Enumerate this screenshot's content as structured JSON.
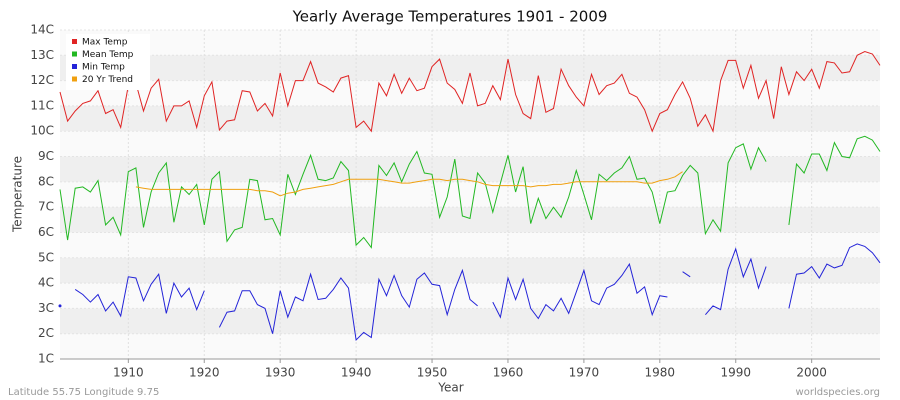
{
  "chart_data": {
    "type": "line",
    "title": "Yearly Average Temperatures 1901 - 2009",
    "x_label": "Year",
    "y_label": "Temperature",
    "footer_left": "Latitude 55.75 Longitude 9.75",
    "footer_right": "worldspecies.org",
    "grid": true,
    "legend_position": "top-left",
    "xlim": [
      1901,
      2009
    ],
    "xticks": [
      1910,
      1920,
      1930,
      1940,
      1950,
      1960,
      1970,
      1980,
      1990,
      2000
    ],
    "ylim": [
      1,
      14
    ],
    "yticks": [
      {
        "value": 1,
        "label": "1C"
      },
      {
        "value": 2,
        "label": "2C"
      },
      {
        "value": 3,
        "label": "3C"
      },
      {
        "value": 4,
        "label": "4C"
      },
      {
        "value": 5,
        "label": "5C"
      },
      {
        "value": 6,
        "label": "6C"
      },
      {
        "value": 7,
        "label": "7C"
      },
      {
        "value": 8,
        "label": "8C"
      },
      {
        "value": 9,
        "label": "9C"
      },
      {
        "value": 10,
        "label": "10C"
      },
      {
        "value": 11,
        "label": "11C"
      },
      {
        "value": 12,
        "label": "12C"
      },
      {
        "value": 13,
        "label": "13C"
      },
      {
        "value": 14,
        "label": "14C"
      }
    ],
    "x": [
      1901,
      1902,
      1903,
      1904,
      1905,
      1906,
      1907,
      1908,
      1909,
      1910,
      1911,
      1912,
      1913,
      1914,
      1915,
      1916,
      1917,
      1918,
      1919,
      1920,
      1921,
      1922,
      1923,
      1924,
      1925,
      1926,
      1927,
      1928,
      1929,
      1930,
      1931,
      1932,
      1933,
      1934,
      1935,
      1936,
      1937,
      1938,
      1939,
      1940,
      1941,
      1942,
      1943,
      1944,
      1945,
      1946,
      1947,
      1948,
      1949,
      1950,
      1951,
      1952,
      1953,
      1954,
      1955,
      1956,
      1957,
      1958,
      1959,
      1960,
      1961,
      1962,
      1963,
      1964,
      1965,
      1966,
      1967,
      1968,
      1969,
      1970,
      1971,
      1972,
      1973,
      1974,
      1975,
      1976,
      1977,
      1978,
      1979,
      1980,
      1981,
      1982,
      1983,
      1984,
      1985,
      1986,
      1987,
      1988,
      1989,
      1990,
      1991,
      1992,
      1993,
      1994,
      1995,
      1996,
      1997,
      1998,
      1999,
      2000,
      2001,
      2002,
      2003,
      2004,
      2005,
      2006,
      2007,
      2008,
      2009
    ],
    "series": [
      {
        "name": "Max Temp",
        "color": "#e02424",
        "values": [
          11.55,
          10.4,
          10.8,
          11.1,
          11.2,
          11.6,
          10.7,
          10.85,
          10.15,
          11.8,
          11.9,
          10.8,
          11.7,
          12.05,
          10.4,
          11.0,
          11.0,
          11.2,
          10.15,
          11.4,
          11.95,
          10.05,
          10.4,
          10.45,
          11.6,
          11.55,
          10.8,
          11.1,
          10.6,
          12.3,
          11.0,
          12.0,
          12.0,
          12.75,
          11.9,
          11.75,
          11.55,
          12.1,
          12.2,
          10.15,
          10.4,
          10.0,
          11.9,
          11.4,
          12.25,
          11.5,
          12.1,
          11.6,
          11.7,
          12.55,
          12.85,
          11.9,
          11.65,
          11.1,
          12.3,
          11.0,
          11.1,
          11.8,
          11.25,
          12.85,
          11.45,
          10.7,
          10.5,
          12.2,
          10.75,
          10.9,
          12.45,
          11.8,
          11.35,
          11.0,
          12.25,
          11.45,
          11.8,
          11.9,
          12.25,
          11.5,
          11.35,
          10.85,
          10.0,
          10.7,
          10.85,
          11.45,
          11.95,
          11.3,
          10.2,
          10.65,
          10.0,
          12.0,
          12.8,
          12.8,
          11.7,
          12.6,
          11.3,
          12.0,
          10.5,
          12.55,
          11.45,
          12.35,
          12.0,
          12.45,
          11.7,
          12.75,
          12.7,
          12.3,
          12.35,
          13.0,
          13.15,
          13.05,
          12.6
        ]
      },
      {
        "name": "Mean Temp",
        "color": "#22b822",
        "values": [
          7.7,
          5.7,
          7.75,
          7.8,
          7.6,
          8.05,
          6.3,
          6.6,
          5.9,
          8.4,
          8.55,
          6.2,
          7.6,
          8.35,
          8.75,
          6.4,
          7.8,
          7.5,
          7.9,
          6.3,
          8.1,
          8.4,
          5.65,
          6.1,
          6.2,
          8.1,
          8.05,
          6.5,
          6.55,
          5.9,
          8.3,
          7.5,
          8.3,
          9.05,
          8.1,
          8.05,
          8.15,
          8.8,
          8.45,
          5.5,
          5.8,
          5.4,
          8.65,
          8.25,
          8.75,
          8.0,
          8.7,
          9.2,
          8.35,
          8.3,
          6.6,
          7.4,
          8.9,
          6.65,
          6.55,
          8.35,
          7.95,
          6.8,
          7.95,
          9.05,
          7.6,
          8.6,
          6.35,
          7.35,
          6.55,
          7.0,
          6.6,
          7.4,
          8.45,
          7.5,
          6.5,
          8.3,
          8.05,
          8.35,
          8.55,
          9.0,
          8.1,
          8.15,
          7.6,
          6.35,
          7.6,
          7.65,
          8.25,
          8.65,
          8.35,
          5.95,
          6.5,
          6.05,
          8.75,
          9.35,
          9.5,
          8.5,
          9.35,
          8.8,
          null,
          null,
          6.3,
          8.7,
          8.35,
          9.1,
          9.1,
          8.45,
          9.55,
          9.0,
          8.95,
          9.7,
          9.8,
          9.65,
          9.2
        ]
      },
      {
        "name": "Min Temp",
        "color": "#2424d8",
        "values": [
          3.1,
          null,
          3.75,
          3.55,
          3.25,
          3.55,
          2.9,
          3.25,
          2.7,
          4.25,
          4.2,
          3.3,
          3.95,
          4.35,
          2.8,
          4.0,
          3.45,
          3.8,
          2.95,
          3.7,
          null,
          2.25,
          2.85,
          2.9,
          3.7,
          3.7,
          3.15,
          3.0,
          2.0,
          3.7,
          2.65,
          3.45,
          3.3,
          4.35,
          3.35,
          3.4,
          3.75,
          4.2,
          3.8,
          1.75,
          2.05,
          1.85,
          4.15,
          3.5,
          4.3,
          3.5,
          3.05,
          4.15,
          4.4,
          3.95,
          3.9,
          2.75,
          3.75,
          4.5,
          3.35,
          3.1,
          null,
          3.25,
          2.65,
          4.2,
          3.35,
          4.15,
          3.0,
          2.6,
          3.15,
          2.9,
          3.4,
          2.8,
          3.65,
          4.5,
          3.3,
          3.15,
          3.8,
          3.95,
          4.3,
          4.75,
          3.6,
          3.85,
          2.75,
          3.5,
          3.45,
          null,
          4.45,
          4.25,
          null,
          2.75,
          3.1,
          2.95,
          4.55,
          5.35,
          4.25,
          4.95,
          3.8,
          4.65,
          null,
          null,
          3.0,
          4.35,
          4.4,
          4.65,
          4.2,
          4.75,
          4.6,
          4.7,
          5.4,
          5.55,
          5.45,
          5.2,
          4.8
        ]
      },
      {
        "name": "20 Yr Trend",
        "color": "#f0a010",
        "values": [
          null,
          null,
          null,
          null,
          null,
          null,
          null,
          null,
          null,
          null,
          7.8,
          7.75,
          7.7,
          7.7,
          7.7,
          7.7,
          7.7,
          7.7,
          7.7,
          7.7,
          7.7,
          7.7,
          7.7,
          7.7,
          7.7,
          7.7,
          7.65,
          7.65,
          7.6,
          7.45,
          7.55,
          7.6,
          7.7,
          7.75,
          7.8,
          7.85,
          7.9,
          8.0,
          8.1,
          8.1,
          8.1,
          8.1,
          8.1,
          8.05,
          8.0,
          7.95,
          7.95,
          8.0,
          8.05,
          8.1,
          8.1,
          8.05,
          8.1,
          8.1,
          8.05,
          8.0,
          7.9,
          7.85,
          7.85,
          7.85,
          7.85,
          7.85,
          7.8,
          7.85,
          7.85,
          7.9,
          7.9,
          7.95,
          8.0,
          8.0,
          8.0,
          8.0,
          8.0,
          8.0,
          8.0,
          8.0,
          8.0,
          7.95,
          7.95,
          8.05,
          8.1,
          8.2,
          8.4,
          null,
          null,
          null,
          null,
          null,
          null,
          null,
          null,
          null,
          null,
          null,
          null,
          null,
          null,
          null,
          null,
          null,
          null,
          null,
          null,
          null,
          null,
          null,
          null,
          null,
          null
        ]
      }
    ]
  }
}
